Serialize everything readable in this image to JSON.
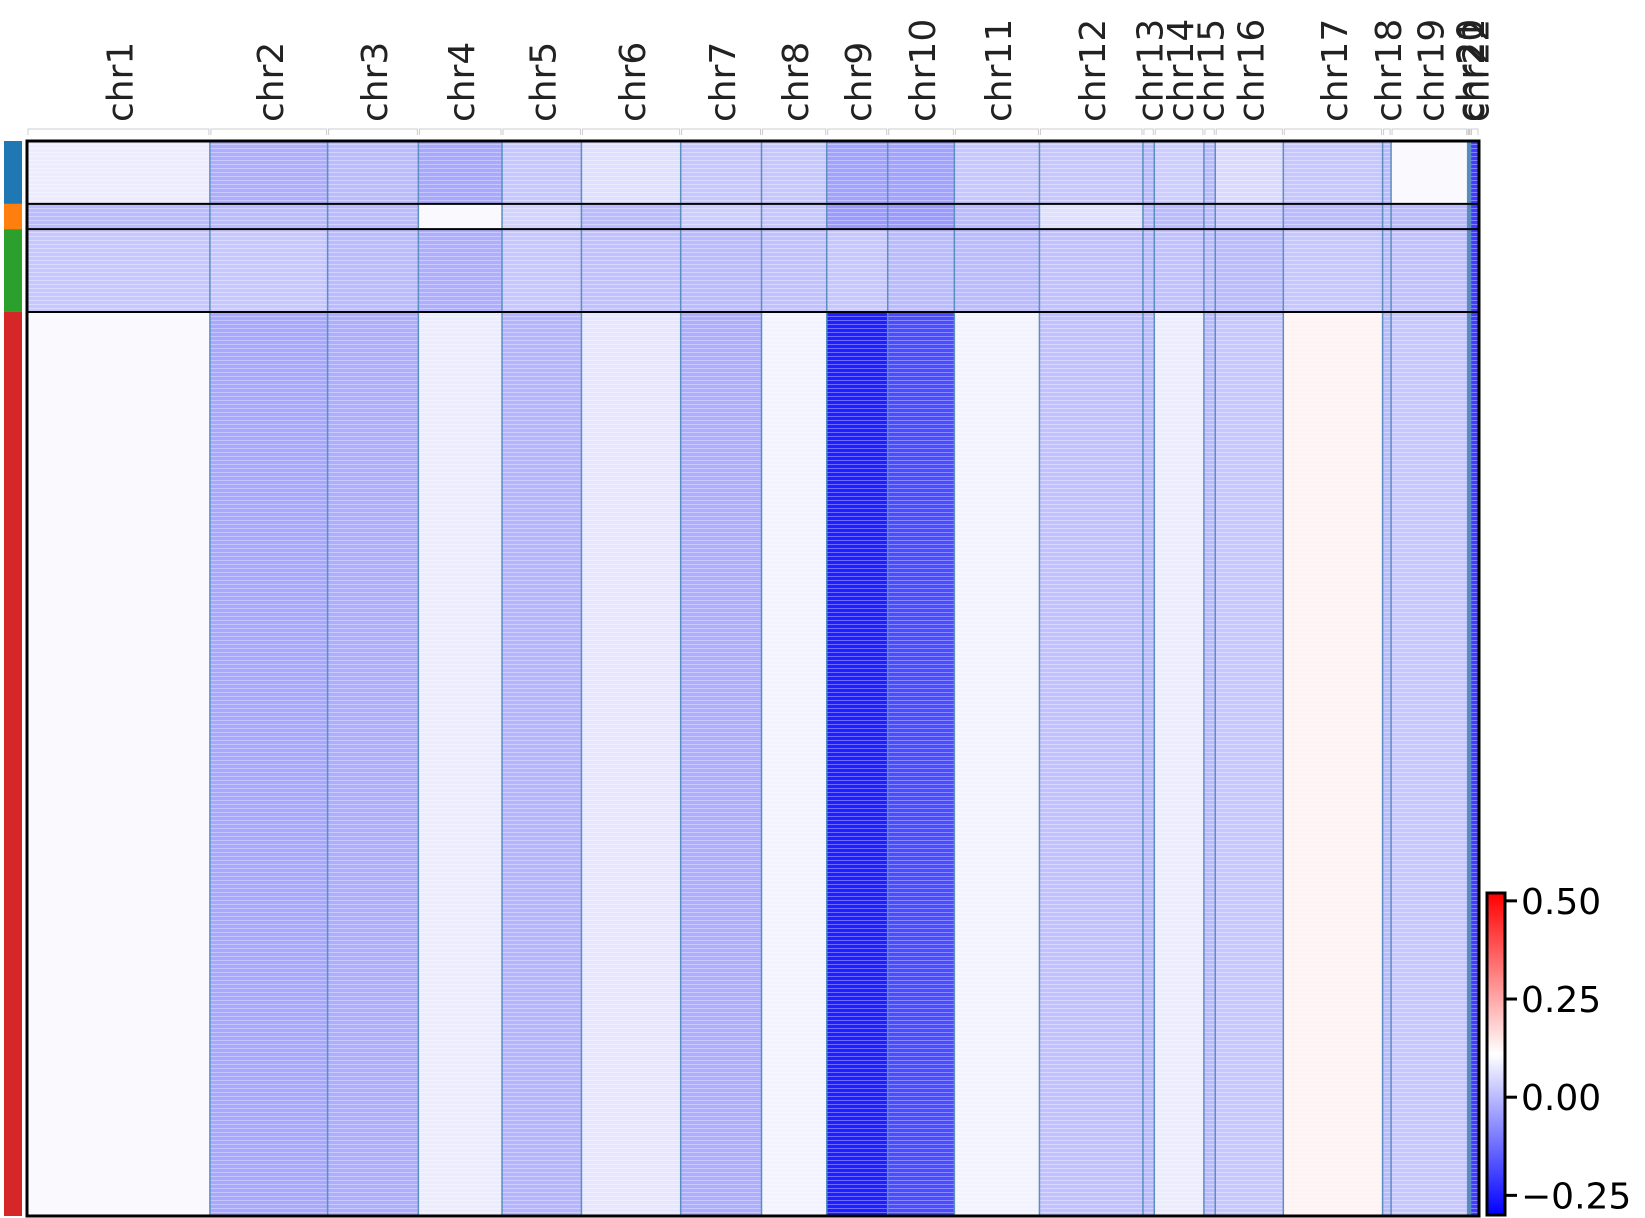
{
  "chart_data": {
    "type": "heatmap",
    "title": "",
    "xlabel": "",
    "ylabel": "",
    "chromosomes": [
      {
        "name": "chr1",
        "size": 12.9
      },
      {
        "name": "chr2",
        "size": 8.3
      },
      {
        "name": "chr3",
        "size": 6.4
      },
      {
        "name": "chr4",
        "size": 5.9
      },
      {
        "name": "chr5",
        "size": 5.6
      },
      {
        "name": "chr6",
        "size": 7.0
      },
      {
        "name": "chr7",
        "size": 5.7
      },
      {
        "name": "chr8",
        "size": 4.6
      },
      {
        "name": "chr9",
        "size": 4.3
      },
      {
        "name": "chr10",
        "size": 4.7
      },
      {
        "name": "chr11",
        "size": 6.0
      },
      {
        "name": "chr12",
        "size": 7.3
      },
      {
        "name": "chr13",
        "size": 0.8
      },
      {
        "name": "chr14",
        "size": 3.5
      },
      {
        "name": "chr15",
        "size": 0.8
      },
      {
        "name": "chr16",
        "size": 4.8
      },
      {
        "name": "chr17",
        "size": 7.0
      },
      {
        "name": "chr18",
        "size": 0.6
      },
      {
        "name": "chr19",
        "size": 5.4
      },
      {
        "name": "chr20",
        "size": 0.1
      },
      {
        "name": "chr21",
        "size": 0.1
      },
      {
        "name": "chr22",
        "size": 0.6
      }
    ],
    "cell_groups": [
      {
        "color": "#1f77b4",
        "weight": 60
      },
      {
        "color": "#ff7f0e",
        "weight": 24
      },
      {
        "color": "#2ca02c",
        "weight": 79
      },
      {
        "color": "#d62728",
        "weight": 862
      }
    ],
    "mean_cnv_by_group": {
      "chr1": [
        0.08,
        0.0,
        0.02,
        0.1
      ],
      "chr2": [
        -0.02,
        0.0,
        0.02,
        -0.03
      ],
      "chr3": [
        0.0,
        0.0,
        0.0,
        -0.02
      ],
      "chr4": [
        -0.03,
        0.1,
        -0.02,
        0.08
      ],
      "chr5": [
        0.02,
        0.04,
        0.02,
        -0.01
      ],
      "chr6": [
        0.06,
        0.0,
        0.01,
        0.07
      ],
      "chr7": [
        0.02,
        0.03,
        0.0,
        -0.02
      ],
      "chr8": [
        0.02,
        0.02,
        0.01,
        0.09
      ],
      "chr9": [
        -0.04,
        -0.05,
        0.02,
        -0.25
      ],
      "chr10": [
        -0.04,
        -0.05,
        0.0,
        -0.18
      ],
      "chr11": [
        0.02,
        0.0,
        0.0,
        0.09
      ],
      "chr12": [
        0.02,
        0.06,
        0.01,
        0.01
      ],
      "chr13": [
        0.0,
        0.0,
        0.0,
        0.0
      ],
      "chr14": [
        0.03,
        0.0,
        0.01,
        0.08
      ],
      "chr15": [
        0.0,
        0.0,
        0.0,
        0.0
      ],
      "chr16": [
        0.05,
        0.02,
        0.0,
        0.02
      ],
      "chr17": [
        0.02,
        0.0,
        0.02,
        0.13
      ],
      "chr18": [
        0.0,
        0.0,
        0.0,
        0.0
      ],
      "chr19": [
        0.1,
        0.0,
        0.01,
        0.02
      ],
      "chr20": [
        -0.2,
        -0.2,
        -0.2,
        -0.2
      ],
      "chr21": [
        -0.2,
        -0.2,
        -0.2,
        -0.2
      ],
      "chr22": [
        -0.2,
        -0.2,
        -0.2,
        -0.2
      ]
    },
    "colorbar": {
      "colormap": "bwr",
      "vmin": -0.3,
      "vmax": 0.52,
      "ticks": [
        "0.50",
        "0.25",
        "0.00",
        "−0.25"
      ],
      "tick_values": [
        0.5,
        0.25,
        0.0,
        -0.25
      ]
    },
    "colors": {
      "separator": "#5b8fbf",
      "border": "#000000",
      "text": "#222222"
    },
    "grid": false
  }
}
